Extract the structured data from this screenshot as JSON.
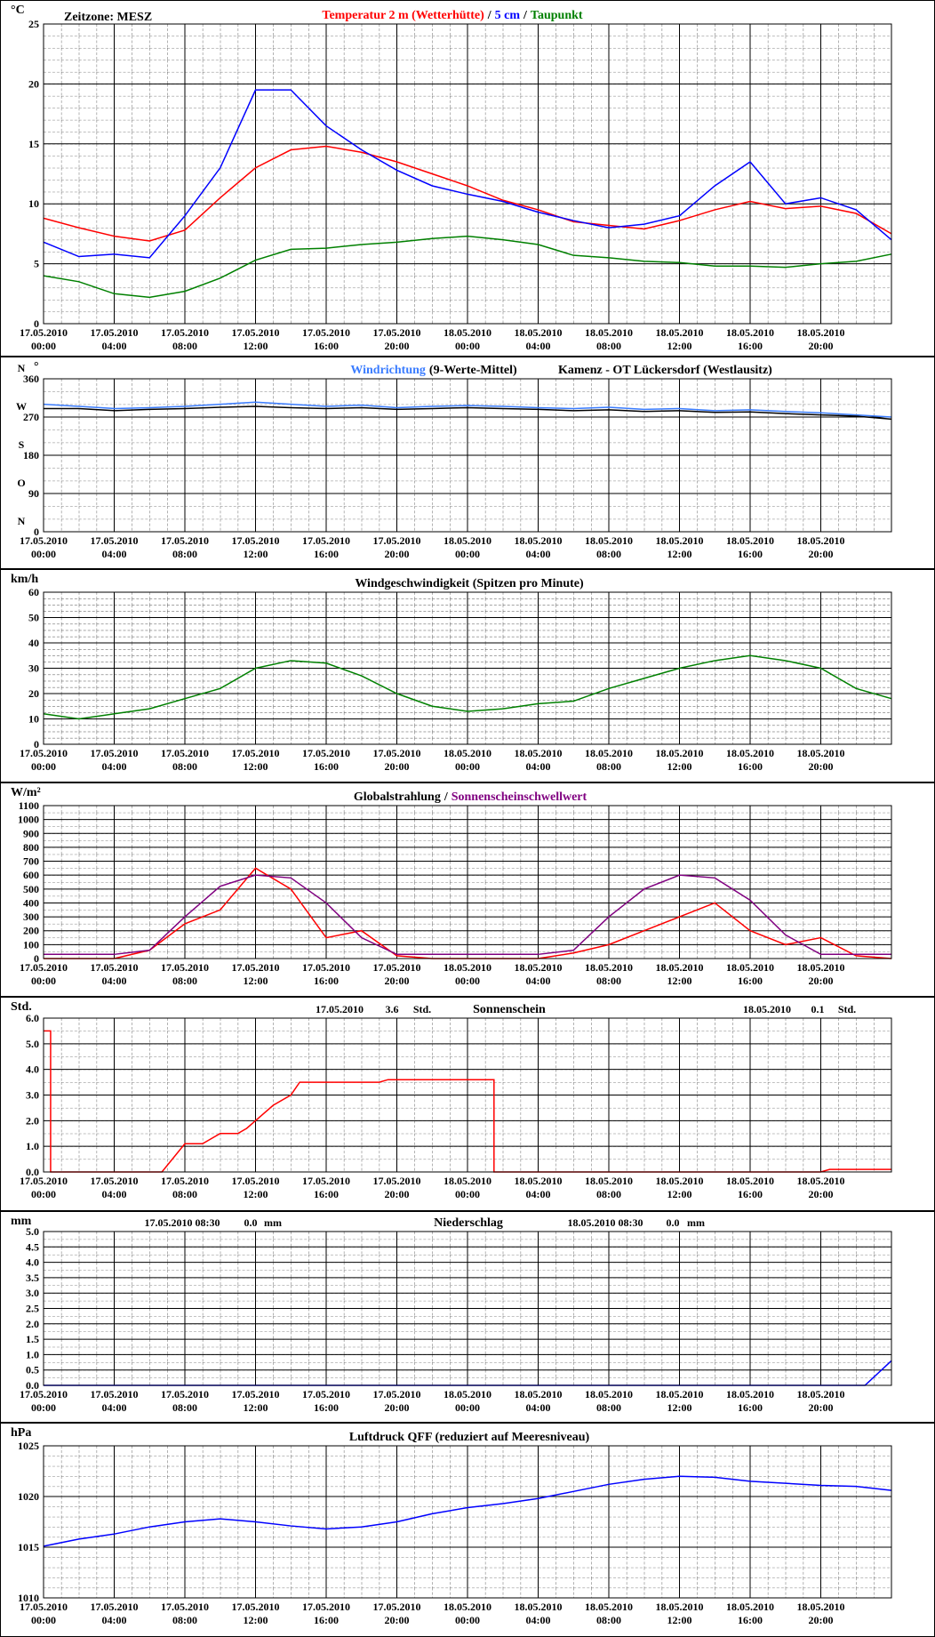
{
  "chart_data": [
    {
      "type": "line",
      "unit": "°C",
      "timezone": "Zeitzone: MESZ",
      "separator": "/",
      "x": [
        0,
        2,
        4,
        6,
        8,
        10,
        12,
        14,
        16,
        18,
        20,
        22,
        24,
        26,
        28,
        30,
        32,
        34,
        36,
        38,
        40,
        42,
        44,
        46,
        48
      ],
      "xlim": [
        0,
        48
      ],
      "xticks": [
        {
          "value": 0,
          "label": "17.05.2010 00:00"
        },
        {
          "value": 4,
          "label": "17.05.2010 04:00"
        },
        {
          "value": 8,
          "label": "17.05.2010 08:00"
        },
        {
          "value": 12,
          "label": "17.05.2010 12:00"
        },
        {
          "value": 16,
          "label": "17.05.2010 16:00"
        },
        {
          "value": 20,
          "label": "17.05.2010 20:00"
        },
        {
          "value": 24,
          "label": "18.05.2010 00:00"
        },
        {
          "value": 28,
          "label": "18.05.2010 04:00"
        },
        {
          "value": 32,
          "label": "18.05.2010 08:00"
        },
        {
          "value": 36,
          "label": "18.05.2010 12:00"
        },
        {
          "value": 40,
          "label": "18.05.2010 16:00"
        },
        {
          "value": 44,
          "label": "18.05.2010 20:00"
        }
      ],
      "ylim": [
        0,
        25
      ],
      "yticks": [
        0,
        5,
        10,
        15,
        20,
        25
      ],
      "grid": true,
      "series": [
        {
          "name": "Temperatur 2 m (Wetterhütte)",
          "color": "#ff0000",
          "values": [
            8.8,
            8.0,
            7.3,
            6.9,
            7.8,
            10.5,
            13.0,
            14.5,
            14.8,
            14.3,
            13.5,
            12.5,
            11.5,
            10.3,
            9.5,
            8.5,
            8.2,
            7.9,
            8.6,
            9.5,
            10.2,
            9.6,
            9.8,
            9.2,
            7.5
          ]
        },
        {
          "name": "5 cm",
          "color": "#0000ff",
          "values": [
            6.8,
            5.6,
            5.8,
            5.5,
            9.0,
            13.0,
            19.5,
            19.5,
            16.5,
            14.5,
            12.8,
            11.5,
            10.8,
            10.2,
            9.3,
            8.6,
            8.0,
            8.3,
            9.0,
            11.5,
            13.5,
            10.0,
            10.5,
            9.5,
            7.0
          ]
        },
        {
          "name": "Taupunkt",
          "color": "#008000",
          "values": [
            4.0,
            3.5,
            2.5,
            2.2,
            2.7,
            3.8,
            5.3,
            6.2,
            6.3,
            6.6,
            6.8,
            7.1,
            7.3,
            7.0,
            6.6,
            5.7,
            5.5,
            5.2,
            5.1,
            4.8,
            4.8,
            4.7,
            5.0,
            5.2,
            5.8
          ]
        }
      ]
    },
    {
      "type": "line",
      "unit": "°",
      "station": "Kamenz - OT Lückersdorf (Westlausitz)",
      "x": [
        0,
        2,
        4,
        6,
        8,
        10,
        12,
        14,
        16,
        18,
        20,
        22,
        24,
        26,
        28,
        30,
        32,
        34,
        36,
        38,
        40,
        42,
        44,
        46,
        48
      ],
      "xlim": [
        0,
        48
      ],
      "xticks": [
        {
          "value": 0,
          "label": "17.05.2010 00:00"
        },
        {
          "value": 4,
          "label": "17.05.2010 04:00"
        },
        {
          "value": 8,
          "label": "17.05.2010 08:00"
        },
        {
          "value": 12,
          "label": "17.05.2010 12:00"
        },
        {
          "value": 16,
          "label": "17.05.2010 16:00"
        },
        {
          "value": 20,
          "label": "17.05.2010 20:00"
        },
        {
          "value": 24,
          "label": "18.05.2010 00:00"
        },
        {
          "value": 28,
          "label": "18.05.2010 04:00"
        },
        {
          "value": 32,
          "label": "18.05.2010 08:00"
        },
        {
          "value": 36,
          "label": "18.05.2010 12:00"
        },
        {
          "value": 40,
          "label": "18.05.2010 16:00"
        },
        {
          "value": 44,
          "label": "18.05.2010 20:00"
        }
      ],
      "ylim": [
        0,
        360
      ],
      "yticks": [
        0,
        90,
        180,
        270,
        360
      ],
      "grid": true,
      "compass_labels": [
        {
          "value": 0,
          "label": "N"
        },
        {
          "value": 90,
          "label": "O"
        },
        {
          "value": 180,
          "label": "S"
        },
        {
          "value": 270,
          "label": "W"
        },
        {
          "value": 360,
          "label": "N"
        }
      ],
      "series": [
        {
          "name": "Windrichtung",
          "color": "#3a7cff",
          "values": [
            300,
            295,
            290,
            292,
            295,
            300,
            305,
            300,
            295,
            298,
            292,
            295,
            297,
            295,
            292,
            290,
            293,
            288,
            290,
            285,
            287,
            283,
            280,
            275,
            270
          ]
        },
        {
          "name": "(9-Werte-Mittel)",
          "color": "#000000",
          "values": [
            290,
            290,
            285,
            288,
            290,
            293,
            295,
            292,
            290,
            292,
            288,
            290,
            292,
            290,
            288,
            285,
            287,
            283,
            285,
            281,
            282,
            278,
            275,
            272,
            265
          ]
        }
      ]
    },
    {
      "type": "line",
      "unit": "km/h",
      "title": "Windgeschwindigkeit (Spitzen pro Minute)",
      "x": [
        0,
        2,
        4,
        6,
        8,
        10,
        12,
        14,
        16,
        18,
        20,
        22,
        24,
        26,
        28,
        30,
        32,
        34,
        36,
        38,
        40,
        42,
        44,
        46,
        48
      ],
      "xlim": [
        0,
        48
      ],
      "xticks": [
        {
          "value": 0,
          "label": "17.05.2010 00:00"
        },
        {
          "value": 4,
          "label": "17.05.2010 04:00"
        },
        {
          "value": 8,
          "label": "17.05.2010 08:00"
        },
        {
          "value": 12,
          "label": "17.05.2010 12:00"
        },
        {
          "value": 16,
          "label": "17.05.2010 16:00"
        },
        {
          "value": 20,
          "label": "17.05.2010 20:00"
        },
        {
          "value": 24,
          "label": "18.05.2010 00:00"
        },
        {
          "value": 28,
          "label": "18.05.2010 04:00"
        },
        {
          "value": 32,
          "label": "18.05.2010 08:00"
        },
        {
          "value": 36,
          "label": "18.05.2010 12:00"
        },
        {
          "value": 40,
          "label": "18.05.2010 16:00"
        },
        {
          "value": 44,
          "label": "18.05.2010 20:00"
        }
      ],
      "ylim": [
        0,
        60
      ],
      "yticks": [
        0,
        10,
        20,
        30,
        40,
        50,
        60
      ],
      "grid": true,
      "series": [
        {
          "name": "Windgeschwindigkeit",
          "color": "#008000",
          "values": [
            12,
            10,
            12,
            14,
            18,
            22,
            30,
            33,
            32,
            27,
            20,
            15,
            13,
            14,
            16,
            17,
            22,
            26,
            30,
            33,
            35,
            33,
            30,
            22,
            18
          ]
        }
      ]
    },
    {
      "type": "line",
      "unit": "W/m²",
      "separator": "/",
      "x": [
        0,
        2,
        4,
        6,
        8,
        10,
        12,
        14,
        16,
        18,
        20,
        22,
        24,
        26,
        28,
        30,
        32,
        34,
        36,
        38,
        40,
        42,
        44,
        46,
        48
      ],
      "xlim": [
        0,
        48
      ],
      "xticks": [
        {
          "value": 0,
          "label": "17.05.2010 00:00"
        },
        {
          "value": 4,
          "label": "17.05.2010 04:00"
        },
        {
          "value": 8,
          "label": "17.05.2010 08:00"
        },
        {
          "value": 12,
          "label": "17.05.2010 12:00"
        },
        {
          "value": 16,
          "label": "17.05.2010 16:00"
        },
        {
          "value": 20,
          "label": "17.05.2010 20:00"
        },
        {
          "value": 24,
          "label": "18.05.2010 00:00"
        },
        {
          "value": 28,
          "label": "18.05.2010 04:00"
        },
        {
          "value": 32,
          "label": "18.05.2010 08:00"
        },
        {
          "value": 36,
          "label": "18.05.2010 12:00"
        },
        {
          "value": 40,
          "label": "18.05.2010 16:00"
        },
        {
          "value": 44,
          "label": "18.05.2010 20:00"
        }
      ],
      "ylim": [
        0,
        1100
      ],
      "yticks": [
        0,
        100,
        200,
        300,
        400,
        500,
        600,
        700,
        800,
        900,
        1000,
        1100
      ],
      "grid": true,
      "series": [
        {
          "name": "Globalstrahlung",
          "color": "#ff0000",
          "values": [
            0,
            0,
            0,
            60,
            250,
            350,
            650,
            500,
            150,
            200,
            20,
            0,
            0,
            0,
            0,
            40,
            100,
            200,
            300,
            400,
            200,
            100,
            150,
            20,
            0
          ]
        },
        {
          "name": "Sonnenscheinschwellwert",
          "color": "#800080",
          "values": [
            30,
            30,
            30,
            60,
            300,
            520,
            600,
            580,
            400,
            150,
            30,
            30,
            30,
            30,
            30,
            60,
            300,
            500,
            600,
            580,
            420,
            170,
            30,
            30,
            30
          ]
        }
      ]
    },
    {
      "type": "line",
      "unit": "Std.",
      "title": "Sonnenschein",
      "daily_totals": [
        {
          "date": "17.05.2010",
          "value": 3.6,
          "unit": "Std."
        },
        {
          "date": "18.05.2010",
          "value": 0.1,
          "unit": "Std."
        }
      ],
      "x": [
        0,
        0.4,
        0.4,
        6.7,
        8,
        9,
        10,
        11,
        11.5,
        12,
        13,
        14,
        14.5,
        19,
        19.5,
        25.5,
        25.5,
        44,
        44.5,
        48
      ],
      "xlim": [
        0,
        48
      ],
      "xticks": [
        {
          "value": 0,
          "label": "17.05.2010 00:00"
        },
        {
          "value": 4,
          "label": "17.05.2010 04:00"
        },
        {
          "value": 8,
          "label": "17.05.2010 08:00"
        },
        {
          "value": 12,
          "label": "17.05.2010 12:00"
        },
        {
          "value": 16,
          "label": "17.05.2010 16:00"
        },
        {
          "value": 20,
          "label": "17.05.2010 20:00"
        },
        {
          "value": 24,
          "label": "18.05.2010 00:00"
        },
        {
          "value": 28,
          "label": "18.05.2010 04:00"
        },
        {
          "value": 32,
          "label": "18.05.2010 08:00"
        },
        {
          "value": 36,
          "label": "18.05.2010 12:00"
        },
        {
          "value": 40,
          "label": "18.05.2010 16:00"
        },
        {
          "value": 44,
          "label": "18.05.2010 20:00"
        }
      ],
      "ylim": [
        0,
        6
      ],
      "yticks": [
        {
          "value": 0,
          "label": "0.0"
        },
        {
          "value": 1,
          "label": "1.0"
        },
        {
          "value": 2,
          "label": "2.0"
        },
        {
          "value": 3,
          "label": "3.0"
        },
        {
          "value": 4,
          "label": "4.0"
        },
        {
          "value": 5,
          "label": "5.0"
        },
        {
          "value": 6,
          "label": "6.0"
        }
      ],
      "grid": true,
      "series": [
        {
          "name": "Sonnenschein",
          "color": "#ff0000",
          "values": [
            5.5,
            5.5,
            0,
            0,
            1.1,
            1.1,
            1.5,
            1.5,
            1.7,
            2.0,
            2.6,
            3.0,
            3.5,
            3.5,
            3.6,
            3.6,
            0,
            0,
            0.1,
            0.1
          ]
        }
      ]
    },
    {
      "type": "line",
      "unit": "mm",
      "title": "Niederschlag",
      "daily_totals": [
        {
          "date": "17.05.2010 08:30",
          "amount": "0.0",
          "unit": "mm"
        },
        {
          "date": "18.05.2010 08:30",
          "amount": "0.0",
          "unit": "mm"
        }
      ],
      "x": [
        0,
        46.5,
        48
      ],
      "xlim": [
        0,
        48
      ],
      "xticks": [
        {
          "value": 0,
          "label": "17.05.2010 00:00"
        },
        {
          "value": 4,
          "label": "17.05.2010 04:00"
        },
        {
          "value": 8,
          "label": "17.05.2010 08:00"
        },
        {
          "value": 12,
          "label": "17.05.2010 12:00"
        },
        {
          "value": 16,
          "label": "17.05.2010 16:00"
        },
        {
          "value": 20,
          "label": "17.05.2010 20:00"
        },
        {
          "value": 24,
          "label": "18.05.2010 00:00"
        },
        {
          "value": 28,
          "label": "18.05.2010 04:00"
        },
        {
          "value": 32,
          "label": "18.05.2010 08:00"
        },
        {
          "value": 36,
          "label": "18.05.2010 12:00"
        },
        {
          "value": 40,
          "label": "18.05.2010 16:00"
        },
        {
          "value": 44,
          "label": "18.05.2010 20:00"
        }
      ],
      "ylim": [
        0,
        5
      ],
      "yticks": [
        {
          "value": 0,
          "label": "0.0"
        },
        {
          "value": 0.5,
          "label": "0.5"
        },
        {
          "value": 1,
          "label": "1.0"
        },
        {
          "value": 1.5,
          "label": "1.5"
        },
        {
          "value": 2,
          "label": "2.0"
        },
        {
          "value": 2.5,
          "label": "2.5"
        },
        {
          "value": 3,
          "label": "3.0"
        },
        {
          "value": 3.5,
          "label": "3.5"
        },
        {
          "value": 4,
          "label": "4.0"
        },
        {
          "value": 4.5,
          "label": "4.5"
        },
        {
          "value": 5,
          "label": "5.0"
        }
      ],
      "grid": true,
      "series": [
        {
          "name": "Niederschlag",
          "color": "#0000ff",
          "values": [
            0,
            0,
            0.8
          ]
        }
      ]
    },
    {
      "type": "line",
      "unit": "hPa",
      "title": "Luftdruck QFF (reduziert auf Meeresniveau)",
      "x": [
        0,
        2,
        4,
        6,
        8,
        10,
        12,
        14,
        16,
        18,
        20,
        22,
        24,
        26,
        28,
        30,
        32,
        34,
        36,
        38,
        40,
        42,
        44,
        46,
        48
      ],
      "xlim": [
        0,
        48
      ],
      "xticks": [
        {
          "value": 0,
          "label": "17.05.2010 00:00"
        },
        {
          "value": 4,
          "label": "17.05.2010 04:00"
        },
        {
          "value": 8,
          "label": "17.05.2010 08:00"
        },
        {
          "value": 12,
          "label": "17.05.2010 12:00"
        },
        {
          "value": 16,
          "label": "17.05.2010 16:00"
        },
        {
          "value": 20,
          "label": "17.05.2010 20:00"
        },
        {
          "value": 24,
          "label": "18.05.2010 00:00"
        },
        {
          "value": 28,
          "label": "18.05.2010 04:00"
        },
        {
          "value": 32,
          "label": "18.05.2010 08:00"
        },
        {
          "value": 36,
          "label": "18.05.2010 12:00"
        },
        {
          "value": 40,
          "label": "18.05.2010 16:00"
        },
        {
          "value": 44,
          "label": "18.05.2010 20:00"
        }
      ],
      "ylim": [
        1010,
        1025
      ],
      "yticks": [
        1010,
        1015,
        1020,
        1025
      ],
      "grid": true,
      "series": [
        {
          "name": "Luftdruck",
          "color": "#0000ff",
          "values": [
            1015.1,
            1015.8,
            1016.3,
            1017.0,
            1017.5,
            1017.8,
            1017.5,
            1017.1,
            1016.8,
            1017.0,
            1017.5,
            1018.3,
            1018.9,
            1019.3,
            1019.8,
            1020.5,
            1021.2,
            1021.7,
            1022.0,
            1021.9,
            1021.5,
            1021.3,
            1021.1,
            1021.0,
            1020.6
          ]
        }
      ]
    }
  ]
}
